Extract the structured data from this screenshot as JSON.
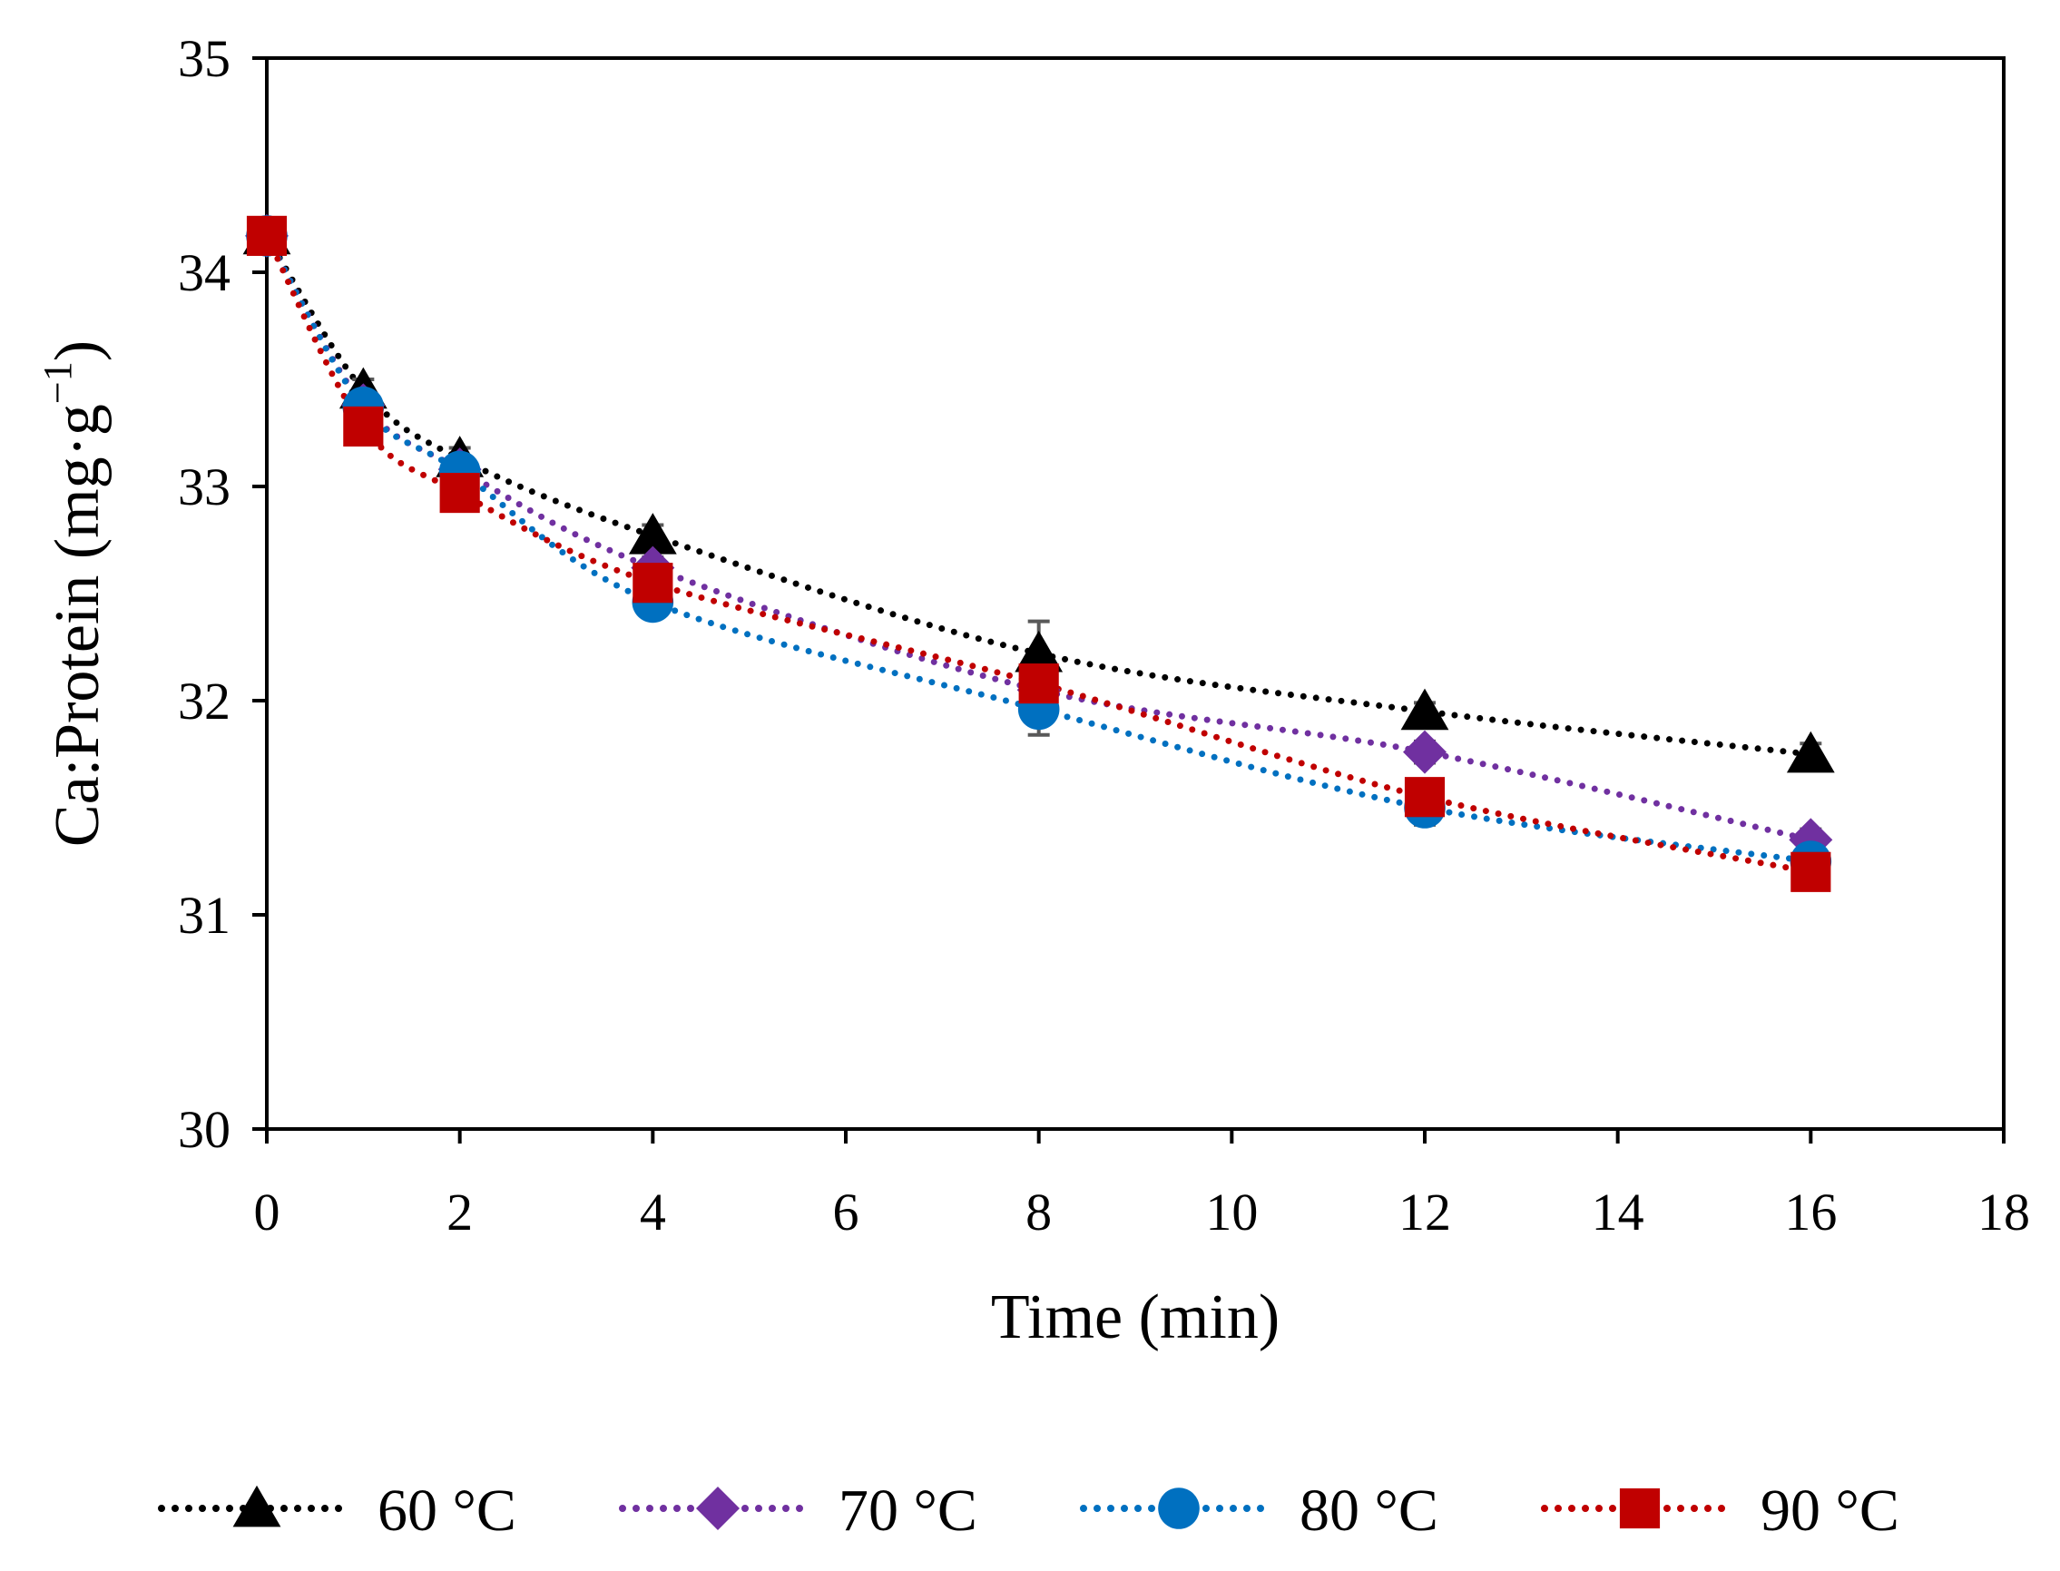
{
  "chart_data": {
    "type": "line",
    "xlabel": "Time (min)",
    "ylabel_main": "Ca:Protein (mg·g",
    "ylabel_sup": "−1",
    "ylabel_close": ")",
    "xlim": [
      0,
      18
    ],
    "ylim": [
      30,
      35
    ],
    "x_ticks": [
      0,
      2,
      4,
      6,
      8,
      10,
      12,
      14,
      16,
      18
    ],
    "y_ticks": [
      30,
      31,
      32,
      33,
      34,
      35
    ],
    "grid": false,
    "legend_position": "bottom",
    "trendline_style": "dotted",
    "series": [
      {
        "name": "60 °C",
        "color": "#000000",
        "marker": "triangle",
        "x": [
          0,
          1,
          2,
          4,
          8,
          12,
          16
        ],
        "y": [
          34.17,
          33.45,
          33.13,
          32.77,
          32.22,
          31.95,
          31.75
        ],
        "err": [
          0.02,
          0.05,
          0.05,
          0.05,
          0.15,
          0.04,
          0.05
        ]
      },
      {
        "name": "70 °C",
        "color": "#7030A0",
        "marker": "diamond",
        "x": [
          0,
          1,
          2,
          4,
          8,
          12,
          16
        ],
        "y": [
          34.17,
          33.38,
          33.08,
          32.62,
          32.05,
          31.76,
          31.35
        ],
        "err": [
          0.02,
          0.05,
          0.05,
          0.05,
          0.1,
          0.05,
          0.05
        ]
      },
      {
        "name": "80 °C",
        "color": "#0070C0",
        "marker": "circle",
        "x": [
          0,
          1,
          2,
          4,
          8,
          12,
          16
        ],
        "y": [
          34.17,
          33.37,
          33.07,
          32.46,
          31.96,
          31.5,
          31.25
        ],
        "err": [
          0.02,
          0.05,
          0.05,
          0.05,
          0.12,
          0.08,
          0.07
        ]
      },
      {
        "name": "90 °C",
        "color": "#C00000",
        "marker": "square",
        "x": [
          0,
          1,
          2,
          4,
          8,
          12,
          16
        ],
        "y": [
          34.17,
          33.28,
          32.97,
          32.55,
          32.08,
          31.55,
          31.2
        ],
        "err": [
          0.02,
          0.05,
          0.05,
          0.05,
          0.1,
          0.07,
          0.08
        ]
      }
    ]
  }
}
